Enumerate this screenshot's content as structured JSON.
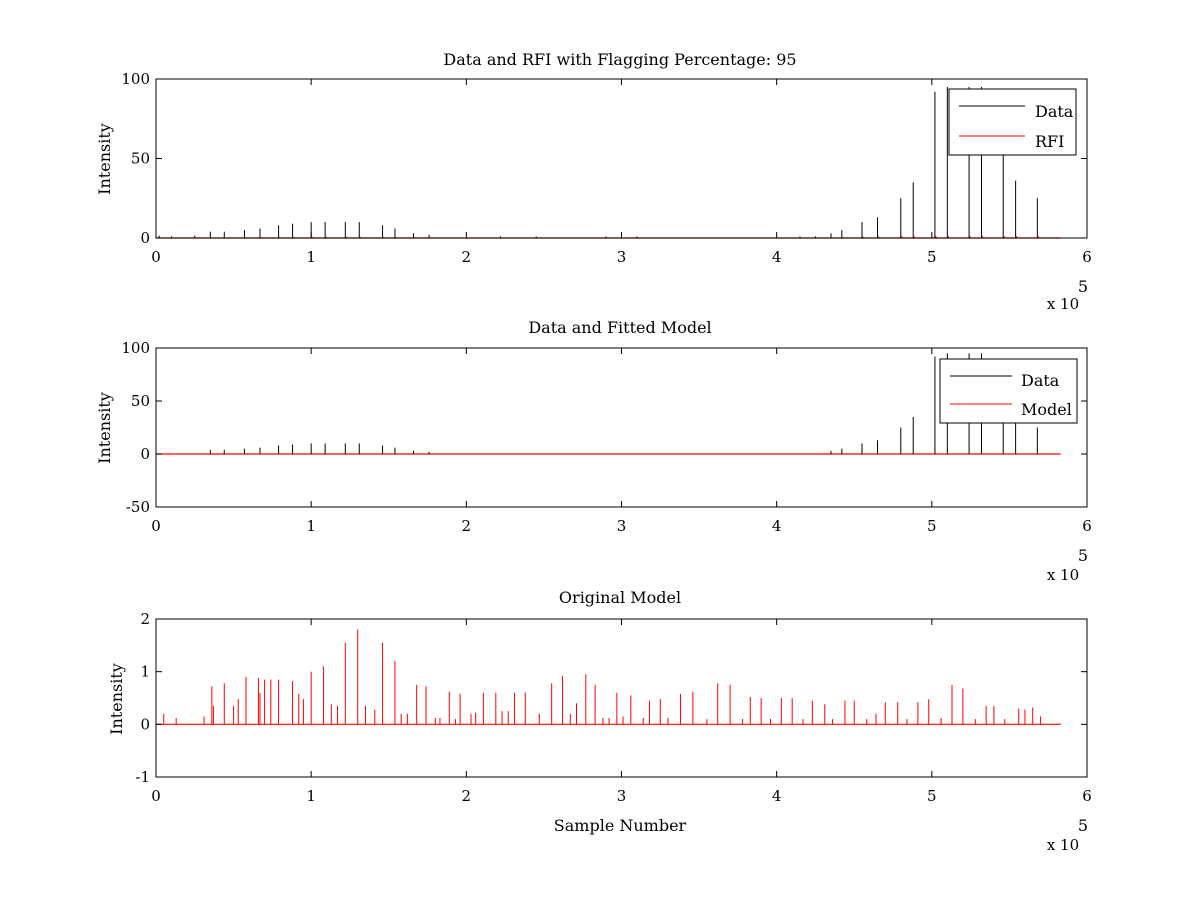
{
  "colors": {
    "data": "#000000",
    "rfi": "#ff0000",
    "model": "#ff0000"
  },
  "chart_data": [
    {
      "type": "line",
      "title": "Data and RFI with Flagging Percentage: 95",
      "xlabel": "",
      "ylabel": "Intensity",
      "xlim": [
        0,
        6
      ],
      "ylim": [
        0,
        100
      ],
      "xticks": [
        "0",
        "1",
        "2",
        "3",
        "4",
        "5",
        "6"
      ],
      "yticks": [
        "0",
        "50",
        "100"
      ],
      "x_exponent": "x 10",
      "x_exponent_power": "5",
      "legend": [
        "Data",
        "RFI"
      ],
      "legend_position": "top-right",
      "spikes": [
        {
          "x": 0.02,
          "y": 1.5
        },
        {
          "x": 0.1,
          "y": 1
        },
        {
          "x": 0.25,
          "y": 1.5
        },
        {
          "x": 0.35,
          "y": 4
        },
        {
          "x": 0.44,
          "y": 4
        },
        {
          "x": 0.57,
          "y": 5
        },
        {
          "x": 0.67,
          "y": 6
        },
        {
          "x": 0.79,
          "y": 8
        },
        {
          "x": 0.88,
          "y": 9
        },
        {
          "x": 1.0,
          "y": 10
        },
        {
          "x": 1.09,
          "y": 10
        },
        {
          "x": 1.22,
          "y": 10
        },
        {
          "x": 1.31,
          "y": 10
        },
        {
          "x": 1.46,
          "y": 8
        },
        {
          "x": 1.54,
          "y": 6
        },
        {
          "x": 1.66,
          "y": 3
        },
        {
          "x": 1.76,
          "y": 2
        },
        {
          "x": 2.22,
          "y": 1
        },
        {
          "x": 2.45,
          "y": 1
        },
        {
          "x": 2.9,
          "y": 1
        },
        {
          "x": 3.1,
          "y": 1
        },
        {
          "x": 4.15,
          "y": 1
        },
        {
          "x": 4.25,
          "y": 1
        },
        {
          "x": 4.35,
          "y": 3
        },
        {
          "x": 4.42,
          "y": 5
        },
        {
          "x": 4.55,
          "y": 10
        },
        {
          "x": 4.65,
          "y": 13
        },
        {
          "x": 4.8,
          "y": 25
        },
        {
          "x": 4.88,
          "y": 35
        },
        {
          "x": 5.02,
          "y": 92
        },
        {
          "x": 5.1,
          "y": 95
        },
        {
          "x": 5.24,
          "y": 95
        },
        {
          "x": 5.32,
          "y": 95
        },
        {
          "x": 5.46,
          "y": 60
        },
        {
          "x": 5.54,
          "y": 36
        },
        {
          "x": 5.68,
          "y": 25
        }
      ]
    },
    {
      "type": "line",
      "title": "Data and Fitted Model",
      "xlabel": "",
      "ylabel": "Intensity",
      "xlim": [
        0,
        6
      ],
      "ylim": [
        -50,
        100
      ],
      "xticks": [
        "0",
        "1",
        "2",
        "3",
        "4",
        "5",
        "6"
      ],
      "yticks": [
        "-50",
        "0",
        "50",
        "100"
      ],
      "x_exponent": "x 10",
      "x_exponent_power": "5",
      "legend": [
        "Data",
        "Model"
      ],
      "legend_position": "top-right",
      "spikes": [
        {
          "x": 0.35,
          "y": 4
        },
        {
          "x": 0.44,
          "y": 4
        },
        {
          "x": 0.57,
          "y": 5
        },
        {
          "x": 0.67,
          "y": 6
        },
        {
          "x": 0.79,
          "y": 8
        },
        {
          "x": 0.88,
          "y": 9
        },
        {
          "x": 1.0,
          "y": 10
        },
        {
          "x": 1.09,
          "y": 10
        },
        {
          "x": 1.22,
          "y": 10
        },
        {
          "x": 1.31,
          "y": 10
        },
        {
          "x": 1.46,
          "y": 8
        },
        {
          "x": 1.54,
          "y": 6
        },
        {
          "x": 1.66,
          "y": 3
        },
        {
          "x": 1.76,
          "y": 2
        },
        {
          "x": 4.35,
          "y": 3
        },
        {
          "x": 4.42,
          "y": 5
        },
        {
          "x": 4.55,
          "y": 10
        },
        {
          "x": 4.65,
          "y": 13
        },
        {
          "x": 4.8,
          "y": 25
        },
        {
          "x": 4.88,
          "y": 35
        },
        {
          "x": 5.02,
          "y": 92
        },
        {
          "x": 5.1,
          "y": 95
        },
        {
          "x": 5.24,
          "y": 95
        },
        {
          "x": 5.32,
          "y": 95
        },
        {
          "x": 5.46,
          "y": 60
        },
        {
          "x": 5.54,
          "y": 36
        },
        {
          "x": 5.68,
          "y": 25
        }
      ]
    },
    {
      "type": "line",
      "title": "Original Model",
      "xlabel": "Sample Number",
      "ylabel": "Intensity",
      "xlim": [
        0,
        6
      ],
      "ylim": [
        -1,
        2
      ],
      "xticks": [
        "0",
        "1",
        "2",
        "3",
        "4",
        "5",
        "6"
      ],
      "yticks": [
        "-1",
        "0",
        "1",
        "2"
      ],
      "x_exponent": "x 10",
      "x_exponent_power": "5",
      "spikes": [
        {
          "x": 0.05,
          "y": 0.2
        },
        {
          "x": 0.13,
          "y": 0.12
        },
        {
          "x": 0.31,
          "y": 0.15
        },
        {
          "x": 0.36,
          "y": 0.72
        },
        {
          "x": 0.37,
          "y": 0.35
        },
        {
          "x": 0.44,
          "y": 0.78
        },
        {
          "x": 0.5,
          "y": 0.35
        },
        {
          "x": 0.53,
          "y": 0.48
        },
        {
          "x": 0.58,
          "y": 0.9
        },
        {
          "x": 0.66,
          "y": 0.88
        },
        {
          "x": 0.67,
          "y": 0.6
        },
        {
          "x": 0.7,
          "y": 0.85
        },
        {
          "x": 0.74,
          "y": 0.85
        },
        {
          "x": 0.79,
          "y": 0.85
        },
        {
          "x": 0.88,
          "y": 0.82
        },
        {
          "x": 0.92,
          "y": 0.58
        },
        {
          "x": 0.95,
          "y": 0.48
        },
        {
          "x": 1.0,
          "y": 1.0
        },
        {
          "x": 1.08,
          "y": 1.1
        },
        {
          "x": 1.13,
          "y": 0.38
        },
        {
          "x": 1.17,
          "y": 0.35
        },
        {
          "x": 1.22,
          "y": 1.55
        },
        {
          "x": 1.3,
          "y": 1.8
        },
        {
          "x": 1.35,
          "y": 0.35
        },
        {
          "x": 1.41,
          "y": 0.28
        },
        {
          "x": 1.46,
          "y": 1.55
        },
        {
          "x": 1.54,
          "y": 1.2
        },
        {
          "x": 1.58,
          "y": 0.2
        },
        {
          "x": 1.62,
          "y": 0.2
        },
        {
          "x": 1.68,
          "y": 0.75
        },
        {
          "x": 1.74,
          "y": 0.72
        },
        {
          "x": 1.8,
          "y": 0.12
        },
        {
          "x": 1.83,
          "y": 0.12
        },
        {
          "x": 1.89,
          "y": 0.62
        },
        {
          "x": 1.93,
          "y": 0.1
        },
        {
          "x": 1.96,
          "y": 0.58
        },
        {
          "x": 2.03,
          "y": 0.2
        },
        {
          "x": 2.06,
          "y": 0.22
        },
        {
          "x": 2.11,
          "y": 0.6
        },
        {
          "x": 2.19,
          "y": 0.6
        },
        {
          "x": 2.23,
          "y": 0.25
        },
        {
          "x": 2.27,
          "y": 0.25
        },
        {
          "x": 2.31,
          "y": 0.6
        },
        {
          "x": 2.38,
          "y": 0.6
        },
        {
          "x": 2.47,
          "y": 0.2
        },
        {
          "x": 2.55,
          "y": 0.78
        },
        {
          "x": 2.62,
          "y": 0.92
        },
        {
          "x": 2.67,
          "y": 0.2
        },
        {
          "x": 2.71,
          "y": 0.4
        },
        {
          "x": 2.77,
          "y": 0.95
        },
        {
          "x": 2.83,
          "y": 0.75
        },
        {
          "x": 2.88,
          "y": 0.12
        },
        {
          "x": 2.92,
          "y": 0.12
        },
        {
          "x": 2.97,
          "y": 0.6
        },
        {
          "x": 3.01,
          "y": 0.15
        },
        {
          "x": 3.06,
          "y": 0.55
        },
        {
          "x": 3.14,
          "y": 0.12
        },
        {
          "x": 3.18,
          "y": 0.45
        },
        {
          "x": 3.25,
          "y": 0.48
        },
        {
          "x": 3.3,
          "y": 0.12
        },
        {
          "x": 3.38,
          "y": 0.58
        },
        {
          "x": 3.46,
          "y": 0.62
        },
        {
          "x": 3.55,
          "y": 0.1
        },
        {
          "x": 3.62,
          "y": 0.78
        },
        {
          "x": 3.7,
          "y": 0.75
        },
        {
          "x": 3.78,
          "y": 0.1
        },
        {
          "x": 3.83,
          "y": 0.52
        },
        {
          "x": 3.9,
          "y": 0.5
        },
        {
          "x": 3.96,
          "y": 0.1
        },
        {
          "x": 4.03,
          "y": 0.5
        },
        {
          "x": 4.1,
          "y": 0.5
        },
        {
          "x": 4.17,
          "y": 0.1
        },
        {
          "x": 4.23,
          "y": 0.45
        },
        {
          "x": 4.31,
          "y": 0.38
        },
        {
          "x": 4.36,
          "y": 0.1
        },
        {
          "x": 4.44,
          "y": 0.45
        },
        {
          "x": 4.5,
          "y": 0.45
        },
        {
          "x": 4.58,
          "y": 0.1
        },
        {
          "x": 4.64,
          "y": 0.2
        },
        {
          "x": 4.7,
          "y": 0.42
        },
        {
          "x": 4.78,
          "y": 0.42
        },
        {
          "x": 4.84,
          "y": 0.1
        },
        {
          "x": 4.91,
          "y": 0.42
        },
        {
          "x": 4.98,
          "y": 0.48
        },
        {
          "x": 5.06,
          "y": 0.12
        },
        {
          "x": 5.13,
          "y": 0.75
        },
        {
          "x": 5.2,
          "y": 0.68
        },
        {
          "x": 5.28,
          "y": 0.1
        },
        {
          "x": 5.35,
          "y": 0.35
        },
        {
          "x": 5.4,
          "y": 0.35
        },
        {
          "x": 5.47,
          "y": 0.1
        },
        {
          "x": 5.56,
          "y": 0.3
        },
        {
          "x": 5.6,
          "y": 0.28
        },
        {
          "x": 5.65,
          "y": 0.32
        },
        {
          "x": 5.7,
          "y": 0.15
        }
      ]
    }
  ]
}
